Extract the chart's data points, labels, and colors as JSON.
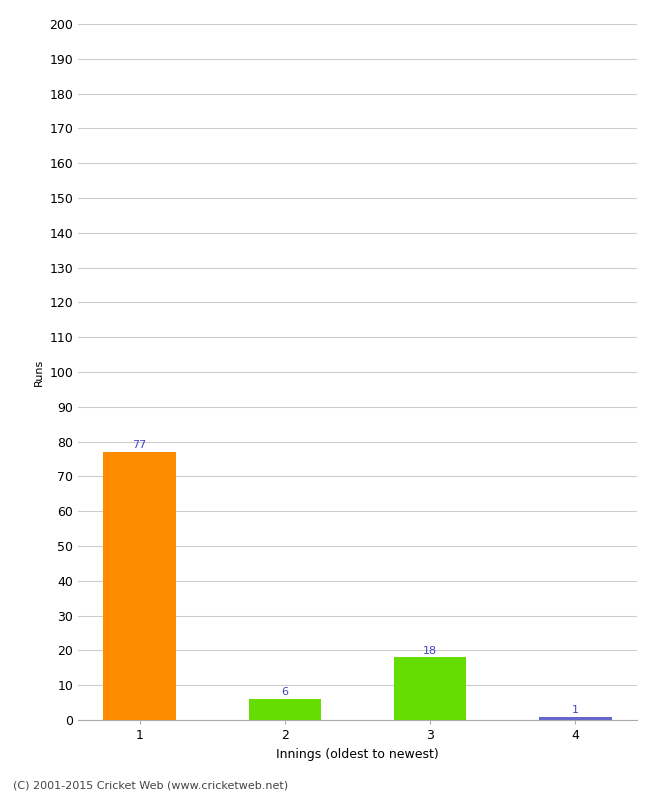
{
  "categories": [
    "1",
    "2",
    "3",
    "4"
  ],
  "values": [
    77,
    6,
    18,
    1
  ],
  "bar_colors": [
    "#ff8c00",
    "#66dd00",
    "#66dd00",
    "#6666cc"
  ],
  "xlabel": "Innings (oldest to newest)",
  "ylabel": "Runs",
  "ylim": [
    0,
    200
  ],
  "yticks": [
    0,
    10,
    20,
    30,
    40,
    50,
    60,
    70,
    80,
    90,
    100,
    110,
    120,
    130,
    140,
    150,
    160,
    170,
    180,
    190,
    200
  ],
  "label_color": "#4444cc",
  "footer": "(C) 2001-2015 Cricket Web (www.cricketweb.net)",
  "background_color": "#ffffff",
  "grid_color": "#cccccc",
  "bar_width": 0.5
}
